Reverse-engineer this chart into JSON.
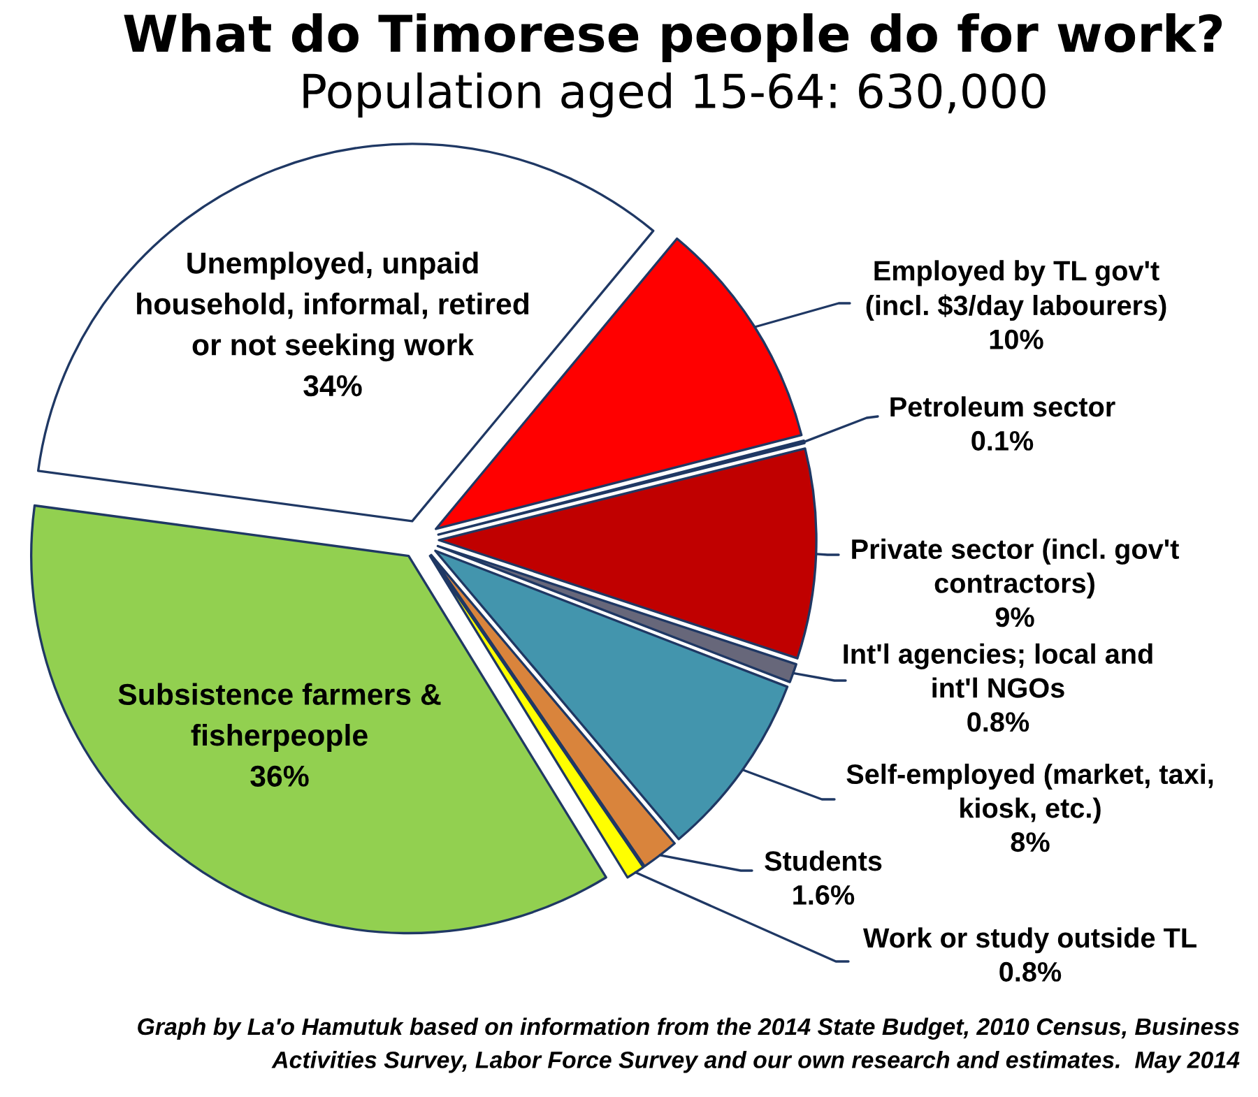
{
  "chart_data": {
    "type": "pie",
    "title": "What do Timorese people do for work?",
    "subtitle": "Population aged 15-64: 630,000",
    "categories": [
      "Employed by TL gov't\n(incl. $3/day labourers)",
      "Petroleum sector",
      "Private sector (incl. gov't\ncontractors)",
      "Int'l agencies; local and\nint'l NGOs",
      "Self-employed (market, taxi,\nkiosk, etc.)",
      "Students",
      "Work or study outside TL",
      "Subsistence farmers &\nfisherpeople",
      "Unemployed, unpaid\nhousehold, informal, retired\nor not seeking work"
    ],
    "values": [
      10,
      0.1,
      9,
      0.8,
      8,
      1.6,
      0.8,
      36,
      34
    ],
    "colors": [
      "#ff0000",
      "#1f3864",
      "#c00000",
      "#67677a",
      "#4395ad",
      "#d9843c",
      "#ffff00",
      "#92d050",
      "#ffffff"
    ],
    "value_labels": [
      "10%",
      "0.1%",
      "9%",
      "0.8%",
      "8%",
      "1.6%",
      "0.8%",
      "36%",
      "34%"
    ],
    "annotations": [
      "Graph by La'o Hamutuk based on information from the 2014 State Budget, 2010 Census, Business\nActivities Survey, Labor Force Survey and our own research and estimates.  May 2014"
    ]
  }
}
